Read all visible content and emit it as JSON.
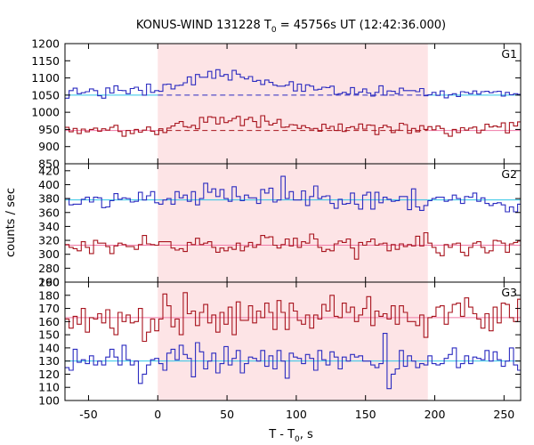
{
  "chart_data": {
    "type": "line",
    "title": {
      "pre": "KONUS-WIND 131228 T",
      "sub": "0",
      "post": " = 45756s UT (12:42:36.000)"
    },
    "xlabel": {
      "pre": "T - T",
      "sub": "0",
      "post": ", s"
    },
    "ylabel": "counts / sec",
    "xlim": [
      -67,
      262
    ],
    "xticks": [
      -50,
      0,
      50,
      100,
      150,
      200,
      250
    ],
    "xtick_labels": [
      "-50",
      "0",
      "50",
      "100",
      "150",
      "200",
      "250"
    ],
    "shaded_interval": [
      0,
      195
    ],
    "colors": {
      "blue": "#2b2bc0",
      "red": "#a8141e",
      "cyan_fit": "#2ec4e6",
      "pink_fit": "#f07aa8",
      "shade": "#fde4e6"
    },
    "panels": [
      {
        "name": "G1",
        "ylim": [
          850,
          1200
        ],
        "yticks": [
          850,
          900,
          950,
          1000,
          1050,
          1100,
          1150,
          1200
        ],
        "ytick_labels": [
          "850",
          "900",
          "950",
          "1000",
          "1050",
          "1100",
          "1150",
          "1200"
        ],
        "series": [
          {
            "color": "blue",
            "fit_color": "cyan_fit",
            "background": 1050,
            "bin": 2.944,
            "values": [
              1041,
              1063,
              1070,
              1054,
              1057,
              1060,
              1068,
              1063,
              1048,
              1041,
              1071,
              1056,
              1077,
              1064,
              1063,
              1054,
              1069,
              1073,
              1064,
              1050,
              1082,
              1058,
              1063,
              1061,
              1081,
              1082,
              1068,
              1078,
              1079,
              1086,
              1103,
              1080,
              1110,
              1102,
              1102,
              1119,
              1099,
              1124,
              1105,
              1110,
              1094,
              1122,
              1111,
              1102,
              1097,
              1104,
              1090,
              1093,
              1081,
              1094,
              1087,
              1079,
              1076,
              1076,
              1079,
              1089,
              1062,
              1082,
              1061,
              1080,
              1076,
              1065,
              1067,
              1073,
              1072,
              1076,
              1052,
              1054,
              1058,
              1053,
              1072,
              1053,
              1059,
              1068,
              1056,
              1047,
              1058,
              1077,
              1050,
              1062,
              1061,
              1054,
              1070,
              1063,
              1063,
              1063,
              1060,
              1069,
              1048,
              1051,
              1058,
              1049,
              1062,
              1042,
              1051,
              1054,
              1046,
              1060,
              1058,
              1054,
              1062,
              1053,
              1060,
              1061,
              1057,
              1060,
              1061,
              1047,
              1058,
              1051,
              1054,
              1052
            ]
          },
          {
            "color": "red",
            "fit_color": "pink_fit",
            "background": 947,
            "bin": 2.944,
            "values": [
              956,
              943,
              953,
              938,
              951,
              943,
              950,
              954,
              945,
              952,
              948,
              956,
              962,
              944,
              930,
              947,
              938,
              950,
              942,
              948,
              957,
              945,
              935,
              952,
              941,
              954,
              960,
              968,
              973,
              958,
              956,
              962,
              952,
              985,
              971,
              987,
              985,
              966,
              985,
              970,
              975,
              982,
              988,
              961,
              979,
              985,
              973,
              956,
              990,
              974,
              963,
              968,
              979,
              956,
              957,
              964,
              963,
              953,
              961,
              955,
              951,
              953,
              945,
              965,
              953,
              959,
              947,
              966,
              944,
              955,
              958,
              951,
              966,
              951,
              963,
              962,
              935,
              955,
              962,
              957,
              941,
              948,
              968,
              964,
              939,
              953,
              943,
              961,
              950,
              958,
              949,
              960,
              953,
              938,
              930,
              950,
              941,
              955,
              948,
              954,
              957,
              940,
              948,
              965,
              957,
              960,
              957,
              969,
              940,
              970,
              960,
              972
            ]
          }
        ]
      },
      {
        "name": "G2",
        "ylim": [
          260,
          430
        ],
        "yticks": [
          260,
          280,
          300,
          320,
          340,
          360,
          380,
          400,
          420
        ],
        "ytick_labels": [
          "260",
          "280",
          "300",
          "320",
          "340",
          "360",
          "380",
          "400",
          "420"
        ],
        "series": [
          {
            "color": "blue",
            "fit_color": "cyan_fit",
            "background": 378,
            "bin": 2.944,
            "values": [
              380,
              371,
              372,
              372,
              379,
              382,
              375,
              382,
              381,
              367,
              368,
              377,
              387,
              379,
              381,
              380,
              375,
              376,
              389,
              378,
              384,
              390,
              374,
              372,
              378,
              380,
              372,
              390,
              381,
              385,
              376,
              390,
              371,
              380,
              402,
              389,
              394,
              383,
              393,
              380,
              376,
              397,
              383,
              377,
              385,
              381,
              381,
              373,
              393,
              388,
              395,
              375,
              378,
              412,
              380,
              390,
              378,
              378,
              391,
              370,
              383,
              398,
              380,
              383,
              384,
              373,
              366,
              379,
              372,
              373,
              388,
              372,
              365,
              385,
              389,
              365,
              389,
              374,
              382,
              379,
              376,
              377,
              383,
              383,
              364,
              394,
              368,
              363,
              370,
              377,
              380,
              382,
              382,
              376,
              378,
              385,
              380,
              373,
              383,
              382,
              388,
              376,
              381,
              373,
              370,
              373,
              374,
              371,
              361,
              368,
              361,
              372
            ]
          },
          {
            "color": "red",
            "fit_color": "pink_fit",
            "background": 313,
            "bin": 2.944,
            "values": [
              314,
              310,
              308,
              305,
              318,
              310,
              301,
              320,
              316,
              316,
              311,
              301,
              312,
              316,
              314,
              311,
              311,
              307,
              314,
              327,
              315,
              314,
              313,
              318,
              318,
              318,
              309,
              306,
              308,
              304,
              317,
              314,
              323,
              314,
              316,
              318,
              310,
              303,
              309,
              305,
              310,
              307,
              316,
              305,
              311,
              317,
              310,
              314,
              327,
              324,
              325,
              313,
              309,
              314,
              322,
              312,
              323,
              310,
              318,
              316,
              329,
              322,
              310,
              304,
              307,
              305,
              315,
              319,
              317,
              322,
              309,
              293,
              317,
              313,
              318,
              322,
              313,
              315,
              316,
              305,
              314,
              307,
              315,
              311,
              314,
              312,
              326,
              312,
              331,
              316,
              310,
              302,
              298,
              314,
              310,
              315,
              316,
              303,
              298,
              310,
              316,
              318,
              310,
              302,
              305,
              320,
              319,
              316,
              303,
              315,
              317,
              319
            ]
          }
        ]
      },
      {
        "name": "G3",
        "ylim": [
          100,
          190
        ],
        "yticks": [
          100,
          110,
          120,
          130,
          140,
          150,
          160,
          170,
          180,
          190
        ],
        "ytick_labels": [
          "100",
          "110",
          "120",
          "130",
          "140",
          "150",
          "160",
          "170",
          "180",
          "190"
        ],
        "series": [
          {
            "color": "red",
            "fit_color": "pink_fit",
            "background": 163,
            "bin": 2.944,
            "values": [
              162,
              155,
              164,
              158,
              170,
              152,
              163,
              162,
              166,
              159,
              169,
              155,
              150,
              167,
              160,
              165,
              159,
              160,
              170,
              145,
              152,
              162,
              153,
              162,
              181,
              172,
              156,
              162,
              150,
              182,
              166,
              168,
              157,
              167,
              173,
              159,
              165,
              152,
              167,
              158,
              171,
              150,
              175,
              161,
              161,
              172,
              159,
              168,
              163,
              174,
              167,
              154,
              176,
              167,
              154,
              174,
              168,
              161,
              158,
              165,
              155,
              165,
              162,
              173,
              168,
              180,
              164,
              163,
              174,
              167,
              171,
              160,
              165,
              170,
              179,
              157,
              168,
              164,
              166,
              162,
              172,
              158,
              172,
              167,
              160,
              160,
              157,
              165,
              148,
              163,
              164,
              171,
              172,
              158,
              167,
              173,
              174,
              164,
              178,
              171,
              166,
              162,
              155,
              166,
              153,
              171,
              159,
              174,
              173,
              163,
              160,
              177
            ]
          },
          {
            "color": "blue",
            "fit_color": "cyan_fit",
            "background": 130,
            "bin": 2.944,
            "values": [
              125,
              123,
              139,
              129,
              131,
              128,
              134,
              127,
              130,
              127,
              133,
              139,
              133,
              127,
              142,
              131,
              127,
              130,
              113,
              120,
              127,
              131,
              132,
              128,
              123,
              136,
              139,
              131,
              142,
              135,
              132,
              118,
              144,
              137,
              124,
              130,
              136,
              121,
              128,
              141,
              127,
              132,
              138,
              121,
              128,
              133,
              132,
              130,
              138,
              126,
              134,
              124,
              138,
              130,
              117,
              136,
              133,
              132,
              128,
              135,
              132,
              123,
              138,
              131,
              127,
              137,
              133,
              124,
              133,
              130,
              135,
              133,
              134,
              130,
              130,
              127,
              125,
              128,
              151,
              109,
              120,
              124,
              138,
              126,
              134,
              130,
              125,
              128,
              127,
              134,
              128,
              127,
              128,
              132,
              135,
              140,
              125,
              128,
              134,
              128,
              133,
              132,
              131,
              138,
              130,
              137,
              131,
              126,
              130,
              140,
              127,
              123
            ]
          }
        ]
      }
    ]
  }
}
